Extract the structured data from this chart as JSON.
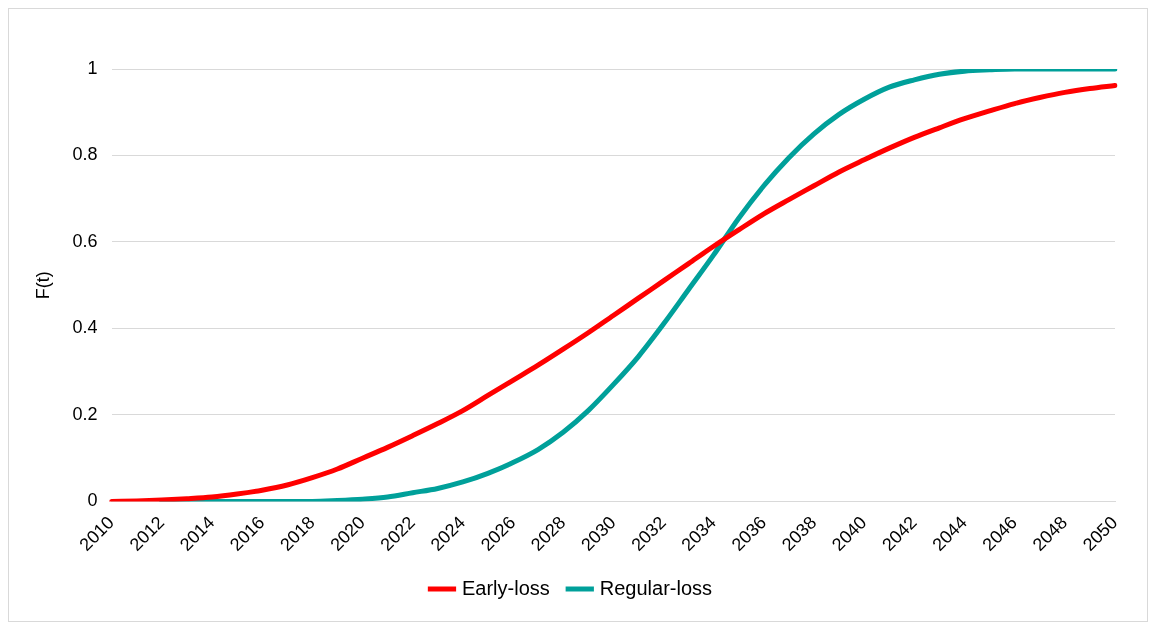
{
  "chart_data": {
    "type": "line",
    "ylabel": "F(t)",
    "categories": [
      "2010",
      null,
      "2012",
      null,
      "2014",
      null,
      "2016",
      null,
      "2018",
      null,
      "2020",
      null,
      "2022",
      null,
      "2024",
      null,
      "2026",
      null,
      "2028",
      null,
      "2030",
      null,
      "2032",
      null,
      "2034",
      null,
      "2036",
      null,
      "2038",
      null,
      "2040",
      null,
      "2042",
      null,
      "2044",
      null,
      "2046",
      null,
      "2048",
      null,
      "2050"
    ],
    "series": [
      {
        "name": "Early-loss",
        "color": "#ff0000",
        "values": [
          0,
          0.001,
          0.003,
          0.006,
          0.01,
          0.017,
          0.026,
          0.038,
          0.055,
          0.075,
          0.1,
          0.125,
          0.152,
          0.18,
          0.21,
          0.245,
          0.28,
          0.315,
          0.352,
          0.39,
          0.43,
          0.47,
          0.51,
          0.55,
          0.59,
          0.628,
          0.665,
          0.698,
          0.73,
          0.762,
          0.79,
          0.817,
          0.842,
          0.864,
          0.885,
          0.903,
          0.92,
          0.934,
          0.946,
          0.955,
          0.962
        ]
      },
      {
        "name": "Regular-loss",
        "color": "#00a09a",
        "values": [
          null,
          null,
          0,
          0,
          0,
          0,
          0,
          0,
          0,
          0.002,
          0.005,
          0.01,
          0.02,
          0.03,
          0.045,
          0.065,
          0.09,
          0.12,
          0.16,
          0.21,
          0.27,
          0.335,
          0.41,
          0.49,
          0.57,
          0.655,
          0.73,
          0.795,
          0.85,
          0.895,
          0.93,
          0.958,
          0.975,
          0.988,
          0.995,
          0.998,
          1,
          1,
          1,
          1,
          1
        ]
      }
    ],
    "ylim": [
      0,
      1
    ],
    "yticks": [
      0,
      0.2,
      0.4,
      0.6,
      0.8,
      1
    ],
    "grid": "y",
    "legend": "bottom",
    "marker": "none",
    "line_style": "solid"
  }
}
